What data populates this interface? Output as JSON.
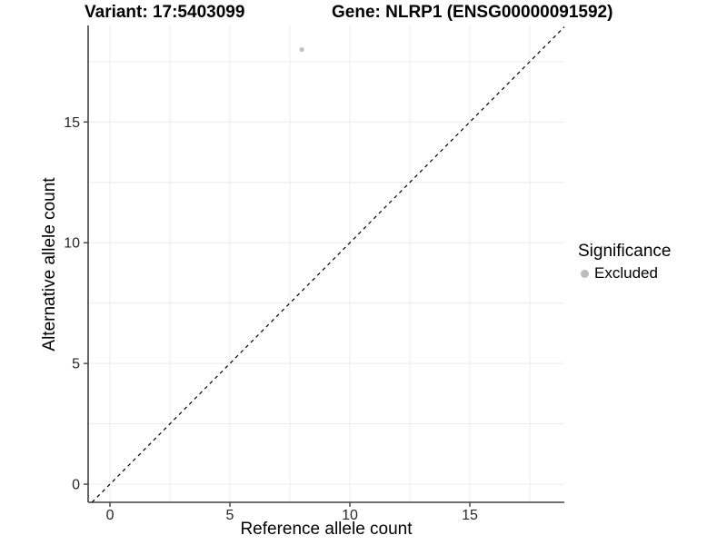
{
  "header": {
    "variant_title": "Variant: 17:5403099",
    "gene_title": "Gene: NLRP1 (ENSG00000091592)"
  },
  "chart_data": {
    "type": "scatter",
    "xlabel": "Reference allele count",
    "ylabel": "Alternative allele count",
    "xlim": [
      -0.91,
      18.94
    ],
    "ylim": [
      -0.75,
      19.0
    ],
    "x_ticks": [
      0,
      5,
      10,
      15
    ],
    "y_ticks": [
      0,
      5,
      10,
      15
    ],
    "grid_step": 2.5,
    "grid_on": true,
    "grid_color": "#ececec",
    "axis_line_color": "#404040",
    "tick_label_color": "#262626",
    "points": [
      {
        "x": 8,
        "y": 18,
        "series": "Excluded"
      }
    ],
    "series": [
      {
        "name": "Excluded",
        "color": "#c2c2c2"
      }
    ],
    "identity_line": {
      "slope": 1,
      "intercept": 0,
      "style": "dashed",
      "color": "#000000"
    },
    "legend": {
      "title": "Significance",
      "position": "right",
      "entries": [
        {
          "label": "Excluded",
          "color": "#bcbcbc",
          "marker": "circle"
        }
      ]
    }
  }
}
